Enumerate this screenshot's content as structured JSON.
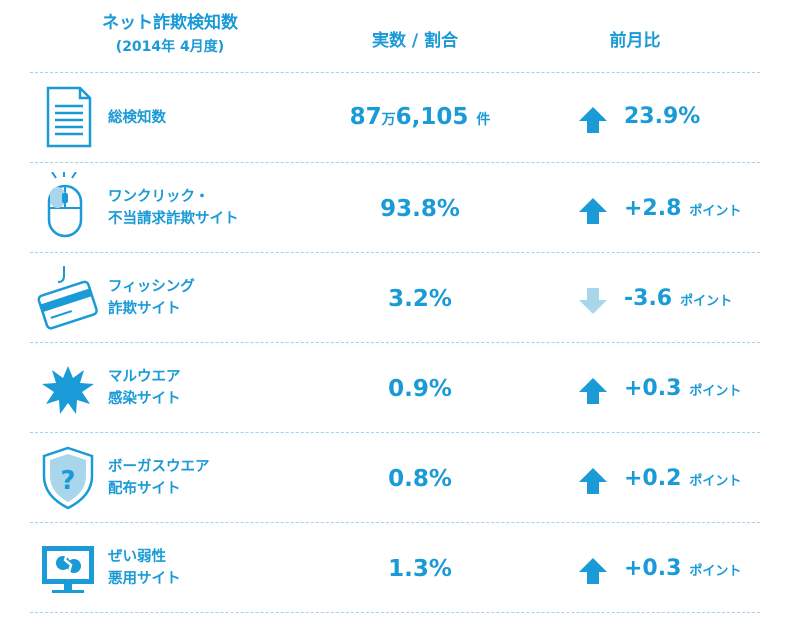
{
  "header": {
    "title": "ネット詐欺検知数",
    "subtitle": "(2014年 4月度)",
    "count_col": "実数 / 割合",
    "change_col": "前月比"
  },
  "colors": {
    "primary": "#1a9ad6",
    "arrow_up": "#1a9ad6",
    "arrow_down": "#a9d6ea",
    "separator": "#9fd3ee"
  },
  "rows": [
    {
      "icon": "document-icon",
      "label_lines": [
        "総検知数"
      ],
      "value_parts": [
        "87",
        "万",
        "6,105",
        "件"
      ],
      "direction": "up",
      "change": "23.9%",
      "change_unit": ""
    },
    {
      "icon": "mouse-icon",
      "label_lines": [
        "ワンクリック・",
        "不当請求詐欺サイト"
      ],
      "value": "93.8%",
      "direction": "up",
      "change": "+2.8",
      "change_unit": "ポイント"
    },
    {
      "icon": "credit-card-hook-icon",
      "label_lines": [
        "フィッシング",
        "詐欺サイト"
      ],
      "value": "3.2%",
      "direction": "down",
      "change": "-3.6",
      "change_unit": "ポイント"
    },
    {
      "icon": "malware-burst-icon",
      "label_lines": [
        "マルウエア",
        "感染サイト"
      ],
      "value": "0.9%",
      "direction": "up",
      "change": "+0.3",
      "change_unit": "ポイント"
    },
    {
      "icon": "question-shield-icon",
      "label_lines": [
        "ボーガスウエア",
        "配布サイト"
      ],
      "value": "0.8%",
      "direction": "up",
      "change": "+0.2",
      "change_unit": "ポイント"
    },
    {
      "icon": "broken-monitor-icon",
      "label_lines": [
        "ぜい弱性",
        "悪用サイト"
      ],
      "value": "1.3%",
      "direction": "up",
      "change": "+0.3",
      "change_unit": "ポイント"
    }
  ]
}
